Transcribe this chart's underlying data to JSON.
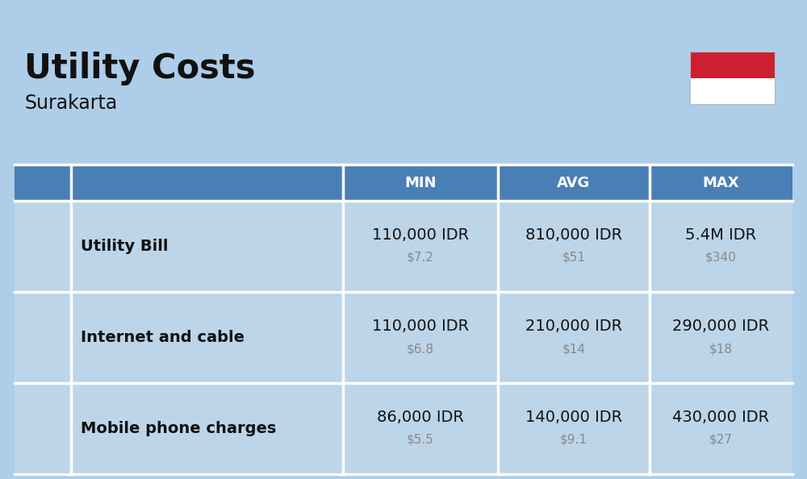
{
  "title": "Utility Costs",
  "subtitle": "Surakarta",
  "background_color": "#aecde8",
  "header_bg_color": "#4a7fb5",
  "header_text_color": "#ffffff",
  "row_bg_color": "#bdd5e8",
  "separator_color": "#ffffff",
  "flag_red": "#cc1f2f",
  "flag_white": "#ffffff",
  "text_dark": "#111111",
  "text_gray": "#888888",
  "title_fontsize": 30,
  "subtitle_fontsize": 17,
  "header_fontsize": 13,
  "label_fontsize": 14,
  "value_fontsize": 14,
  "usd_fontsize": 11,
  "rows": [
    {
      "label": "Utility Bill",
      "min_idr": "110,000 IDR",
      "min_usd": "$7.2",
      "avg_idr": "810,000 IDR",
      "avg_usd": "$51",
      "max_idr": "5.4M IDR",
      "max_usd": "$340"
    },
    {
      "label": "Internet and cable",
      "min_idr": "110,000 IDR",
      "min_usd": "$6.8",
      "avg_idr": "210,000 IDR",
      "avg_usd": "$14",
      "max_idr": "290,000 IDR",
      "max_usd": "$18"
    },
    {
      "label": "Mobile phone charges",
      "min_idr": "86,000 IDR",
      "min_usd": "$5.5",
      "avg_idr": "140,000 IDR",
      "avg_usd": "$9.1",
      "max_idr": "430,000 IDR",
      "max_usd": "$27"
    }
  ]
}
